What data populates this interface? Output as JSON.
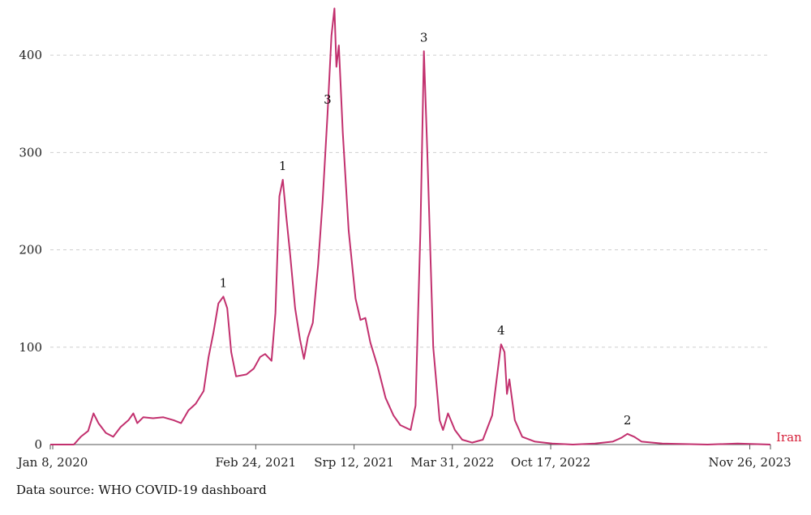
{
  "chart_data": {
    "type": "line",
    "title": "",
    "xlabel": "",
    "ylabel": "",
    "ylim": [
      0,
      450
    ],
    "yticks": [
      0,
      100,
      200,
      300,
      400
    ],
    "grid": "horizontal dashed",
    "x_axis": {
      "start": "2020-01-03",
      "end": "2024-01-07",
      "tick_labels": [
        "Jan 8, 2020",
        "Feb 24, 2021",
        "Srp 12, 2021",
        "Mar 31, 2022",
        "Oct 17, 2022",
        "Nov 26, 2023"
      ],
      "tick_dates": [
        "2020-01-08",
        "2021-02-24",
        "2021-09-12",
        "2022-03-31",
        "2022-10-17",
        "2023-11-26"
      ]
    },
    "series": [
      {
        "name": "Iran",
        "color": "#c2306e",
        "points": [
          [
            "2020-01-03",
            0
          ],
          [
            "2020-02-20",
            0
          ],
          [
            "2020-03-05",
            8
          ],
          [
            "2020-03-20",
            14
          ],
          [
            "2020-03-31",
            32
          ],
          [
            "2020-04-10",
            22
          ],
          [
            "2020-04-25",
            12
          ],
          [
            "2020-05-10",
            8
          ],
          [
            "2020-05-25",
            18
          ],
          [
            "2020-06-10",
            25
          ],
          [
            "2020-06-20",
            32
          ],
          [
            "2020-06-28",
            22
          ],
          [
            "2020-07-10",
            28
          ],
          [
            "2020-07-30",
            27
          ],
          [
            "2020-08-20",
            28
          ],
          [
            "2020-09-10",
            25
          ],
          [
            "2020-09-25",
            22
          ],
          [
            "2020-10-10",
            35
          ],
          [
            "2020-10-25",
            42
          ],
          [
            "2020-11-10",
            55
          ],
          [
            "2020-11-20",
            90
          ],
          [
            "2020-11-30",
            115
          ],
          [
            "2020-12-10",
            145
          ],
          [
            "2020-12-20",
            152
          ],
          [
            "2020-12-28",
            140
          ],
          [
            "2021-01-05",
            95
          ],
          [
            "2021-01-15",
            70
          ],
          [
            "2021-02-05",
            72
          ],
          [
            "2021-02-20",
            78
          ],
          [
            "2021-03-05",
            90
          ],
          [
            "2021-03-15",
            93
          ],
          [
            "2021-03-28",
            86
          ],
          [
            "2021-04-05",
            135
          ],
          [
            "2021-04-13",
            255
          ],
          [
            "2021-04-20",
            272
          ],
          [
            "2021-04-27",
            235
          ],
          [
            "2021-05-05",
            195
          ],
          [
            "2021-05-15",
            140
          ],
          [
            "2021-05-25",
            108
          ],
          [
            "2021-06-02",
            88
          ],
          [
            "2021-06-10",
            110
          ],
          [
            "2021-06-20",
            125
          ],
          [
            "2021-07-01",
            185
          ],
          [
            "2021-07-10",
            250
          ],
          [
            "2021-07-20",
            340
          ],
          [
            "2021-07-28",
            420
          ],
          [
            "2021-08-03",
            448
          ],
          [
            "2021-08-07",
            388
          ],
          [
            "2021-08-12",
            410
          ],
          [
            "2021-08-20",
            320
          ],
          [
            "2021-09-01",
            220
          ],
          [
            "2021-09-15",
            150
          ],
          [
            "2021-09-25",
            128
          ],
          [
            "2021-10-05",
            130
          ],
          [
            "2021-10-15",
            105
          ],
          [
            "2021-10-30",
            80
          ],
          [
            "2021-11-15",
            48
          ],
          [
            "2021-12-01",
            30
          ],
          [
            "2021-12-15",
            20
          ],
          [
            "2022-01-05",
            15
          ],
          [
            "2022-01-15",
            40
          ],
          [
            "2022-01-25",
            220
          ],
          [
            "2022-02-01",
            404
          ],
          [
            "2022-02-08",
            300
          ],
          [
            "2022-02-20",
            100
          ],
          [
            "2022-03-05",
            25
          ],
          [
            "2022-03-12",
            15
          ],
          [
            "2022-03-22",
            32
          ],
          [
            "2022-04-05",
            15
          ],
          [
            "2022-04-20",
            5
          ],
          [
            "2022-05-10",
            2
          ],
          [
            "2022-06-01",
            5
          ],
          [
            "2022-06-20",
            30
          ],
          [
            "2022-07-01",
            75
          ],
          [
            "2022-07-08",
            103
          ],
          [
            "2022-07-15",
            95
          ],
          [
            "2022-07-20",
            52
          ],
          [
            "2022-07-25",
            67
          ],
          [
            "2022-08-05",
            25
          ],
          [
            "2022-08-20",
            8
          ],
          [
            "2022-09-15",
            3
          ],
          [
            "2022-10-20",
            1
          ],
          [
            "2022-12-01",
            0
          ],
          [
            "2023-01-15",
            1
          ],
          [
            "2023-02-20",
            3
          ],
          [
            "2023-03-10",
            7
          ],
          [
            "2023-03-22",
            11
          ],
          [
            "2023-04-05",
            8
          ],
          [
            "2023-04-20",
            3
          ],
          [
            "2023-06-01",
            1
          ],
          [
            "2023-09-01",
            0
          ],
          [
            "2023-11-01",
            1
          ],
          [
            "2024-01-07",
            0
          ]
        ]
      }
    ],
    "annotations": [
      {
        "text": "1",
        "date": "2020-12-20",
        "y": 152
      },
      {
        "text": "1",
        "date": "2021-04-20",
        "y": 272
      },
      {
        "text": "3",
        "date": "2021-07-20",
        "y": 340
      },
      {
        "text": "3",
        "date": "2022-02-01",
        "y": 404
      },
      {
        "text": "4",
        "date": "2022-07-08",
        "y": 103
      },
      {
        "text": "2",
        "date": "2023-03-22",
        "y": 11
      }
    ],
    "series_label": {
      "text": "Iran",
      "color": "#d6203a"
    }
  },
  "source_note": "Data source: WHO COVID-19 dashboard"
}
